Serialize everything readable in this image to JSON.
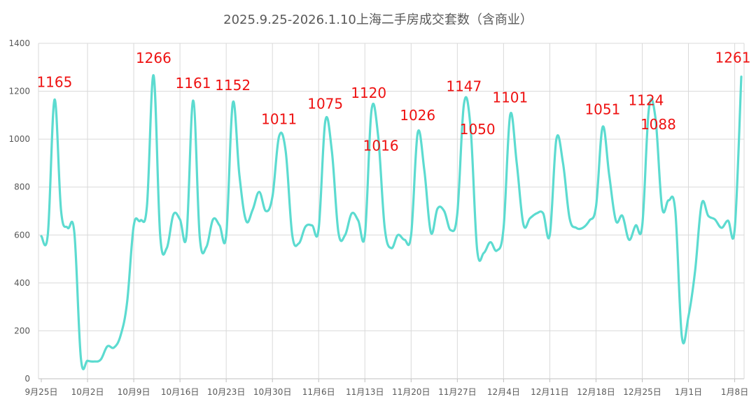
{
  "chart_data": {
    "type": "line",
    "title": "2025.9.25-2026.1.10上海二手房成交套数（含商业）",
    "xlabel": "",
    "ylabel": "",
    "ylim": [
      0,
      1400
    ],
    "yticks": [
      0,
      200,
      400,
      600,
      800,
      1000,
      1200,
      1400
    ],
    "grid": true,
    "legend": "none",
    "series_color": "#5cdbd0",
    "annotation_color": "#ee1111",
    "x_tick_labels": [
      {
        "day": 0,
        "label": "9月25日"
      },
      {
        "day": 7,
        "label": "10月2日"
      },
      {
        "day": 14,
        "label": "10月9日"
      },
      {
        "day": 21,
        "label": "10月16日"
      },
      {
        "day": 28,
        "label": "10月23日"
      },
      {
        "day": 35,
        "label": "10月30日"
      },
      {
        "day": 42,
        "label": "11月6日"
      },
      {
        "day": 49,
        "label": "11月13日"
      },
      {
        "day": 56,
        "label": "11月20日"
      },
      {
        "day": 63,
        "label": "11月27日"
      },
      {
        "day": 70,
        "label": "12月4日"
      },
      {
        "day": 77,
        "label": "12月11日"
      },
      {
        "day": 84,
        "label": "12月18日"
      },
      {
        "day": 91,
        "label": "12月25日"
      },
      {
        "day": 98,
        "label": "1月1日"
      },
      {
        "day": 105,
        "label": "1月8日"
      }
    ],
    "series": [
      {
        "values": [
          595,
          605,
          1165,
          700,
          630,
          610,
          85,
          75,
          72,
          80,
          135,
          130,
          180,
          320,
          640,
          660,
          720,
          1266,
          600,
          545,
          685,
          665,
          600,
          1161,
          590,
          550,
          665,
          640,
          600,
          1152,
          850,
          660,
          705,
          780,
          700,
          760,
          1011,
          950,
          600,
          565,
          635,
          640,
          625,
          1075,
          950,
          610,
          600,
          690,
          660,
          600,
          1120,
          1016,
          630,
          545,
          600,
          580,
          600,
          1026,
          870,
          610,
          710,
          700,
          620,
          690,
          1147,
          1050,
          540,
          525,
          570,
          535,
          630,
          1101,
          900,
          645,
          670,
          690,
          690,
          600,
          1000,
          900,
          670,
          630,
          630,
          660,
          720,
          1051,
          850,
          660,
          680,
          580,
          640,
          640,
          1124,
          1088,
          715,
          745,
          700,
          175,
          260,
          450,
          730,
          680,
          665,
          630,
          660,
          625,
          1261
        ]
      }
    ],
    "annotations": [
      {
        "text": "1165",
        "day": 2,
        "value": 1165
      },
      {
        "text": "1266",
        "day": 17,
        "value": 1266
      },
      {
        "text": "1161",
        "day": 23,
        "value": 1161
      },
      {
        "text": "1152",
        "day": 29,
        "value": 1152
      },
      {
        "text": "1011",
        "day": 36,
        "value": 1011
      },
      {
        "text": "1075",
        "day": 43,
        "value": 1075
      },
      {
        "text": "1120",
        "day": 50,
        "value": 1120
      },
      {
        "text": "1016",
        "day": 51,
        "value": 1016
      },
      {
        "text": "1026",
        "day": 57,
        "value": 1026
      },
      {
        "text": "1147",
        "day": 64,
        "value": 1147
      },
      {
        "text": "1050",
        "day": 65,
        "value": 1050
      },
      {
        "text": "1101",
        "day": 71,
        "value": 1101
      },
      {
        "text": "1051",
        "day": 85,
        "value": 1051
      },
      {
        "text": "1124",
        "day": 92,
        "value": 1124
      },
      {
        "text": "1088",
        "day": 93,
        "value": 1088
      },
      {
        "text": "1261",
        "day": 106,
        "value": 1261
      }
    ]
  }
}
